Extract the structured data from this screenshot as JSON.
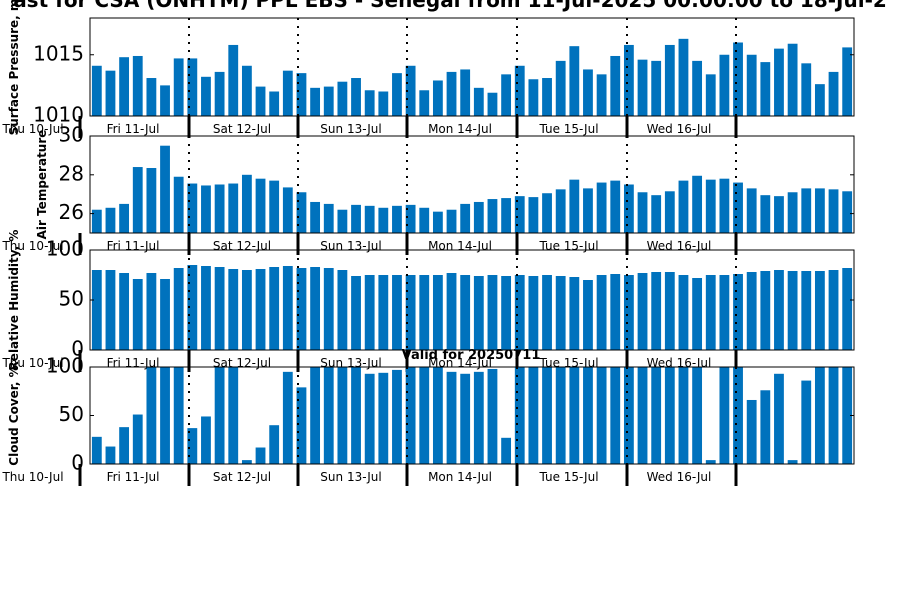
{
  "title": "ast for CSA (ONHTM) PPL EBS  - Senegal from 11-Jul-2025 00:00:00 to 18-Jul-2",
  "subtitle": "Valid for 20250711",
  "colors": {
    "bar": "#0072bd",
    "axis": "#000000",
    "day_separator": "#000000"
  },
  "day_labels": [
    "Thu 10-Jul",
    "Fri 11-Jul",
    "Sat 12-Jul",
    "Sun 13-Jul",
    "Mon 14-Jul",
    "Tue 15-Jul",
    "Wed 16-Jul"
  ],
  "chart_data": [
    {
      "type": "bar",
      "ylabel": "Surface Pressure, m",
      "ylim": [
        1010,
        1018
      ],
      "yticks": [
        1010,
        1015
      ],
      "grid": false,
      "values": [
        1014.1,
        1013.7,
        1014.8,
        1014.9,
        1013.1,
        1012.5,
        1014.7,
        1014.7,
        1013.2,
        1013.6,
        1015.8,
        1014.1,
        1012.4,
        1012.0,
        1013.7,
        1013.5,
        1012.3,
        1012.4,
        1012.8,
        1013.1,
        1012.1,
        1012.0,
        1013.5,
        1014.1,
        1012.1,
        1012.9,
        1013.6,
        1013.8,
        1012.3,
        1011.9,
        1013.4,
        1014.1,
        1013.0,
        1013.1,
        1014.5,
        1015.7,
        1013.8,
        1013.4,
        1014.9,
        1015.8,
        1014.6,
        1014.5,
        1015.8,
        1016.3,
        1014.5,
        1013.4,
        1015.0,
        1016.0,
        1015.0,
        1014.4,
        1015.5,
        1015.9,
        1014.3,
        1012.6,
        1013.6,
        1015.6
      ]
    },
    {
      "type": "bar",
      "ylabel": "Air Temperature",
      "ylim": [
        25,
        30
      ],
      "yticks": [
        26,
        28,
        30
      ],
      "grid": false,
      "values": [
        26.2,
        26.3,
        26.5,
        28.4,
        28.35,
        29.5,
        27.9,
        27.55,
        27.45,
        27.5,
        27.55,
        28.0,
        27.8,
        27.7,
        27.35,
        27.1,
        26.6,
        26.5,
        26.2,
        26.45,
        26.4,
        26.3,
        26.4,
        26.45,
        26.3,
        26.1,
        26.2,
        26.5,
        26.6,
        26.75,
        26.8,
        26.9,
        26.85,
        27.05,
        27.25,
        27.75,
        27.3,
        27.6,
        27.7,
        27.5,
        27.1,
        26.95,
        27.15,
        27.7,
        27.95,
        27.75,
        27.8,
        27.6,
        27.3,
        26.95,
        26.9,
        27.1,
        27.3,
        27.3,
        27.25,
        27.15
      ]
    },
    {
      "type": "bar",
      "ylabel": "Relative Humidity, %",
      "ylim": [
        0,
        100
      ],
      "yticks": [
        0,
        50,
        100
      ],
      "grid": false,
      "values": [
        80,
        80,
        77,
        71,
        77,
        71,
        82,
        85,
        84,
        83,
        81,
        80,
        81,
        83,
        84,
        82,
        83,
        82,
        80,
        74,
        75,
        75,
        75,
        75,
        75,
        75,
        77,
        75,
        74,
        75,
        74,
        75,
        74,
        75,
        74,
        73,
        70,
        75,
        76,
        75,
        77,
        78,
        78,
        75,
        72,
        75,
        75,
        76,
        78,
        79,
        80,
        79,
        79,
        79,
        80,
        82
      ]
    },
    {
      "type": "bar",
      "ylabel": "Cloud Cover, %",
      "ylim": [
        0,
        100
      ],
      "yticks": [
        0,
        50,
        100
      ],
      "grid": false,
      "values": [
        28,
        18,
        38,
        51,
        100,
        100,
        100,
        37,
        49,
        100,
        100,
        4,
        17,
        40,
        95,
        79,
        100,
        100,
        100,
        100,
        93,
        94,
        97,
        100,
        100,
        100,
        95,
        93,
        95,
        98,
        27,
        100,
        100,
        100,
        100,
        100,
        100,
        100,
        100,
        100,
        100,
        100,
        100,
        100,
        100,
        4,
        100,
        100,
        66,
        76,
        93,
        4,
        86,
        100,
        100,
        100
      ]
    }
  ]
}
